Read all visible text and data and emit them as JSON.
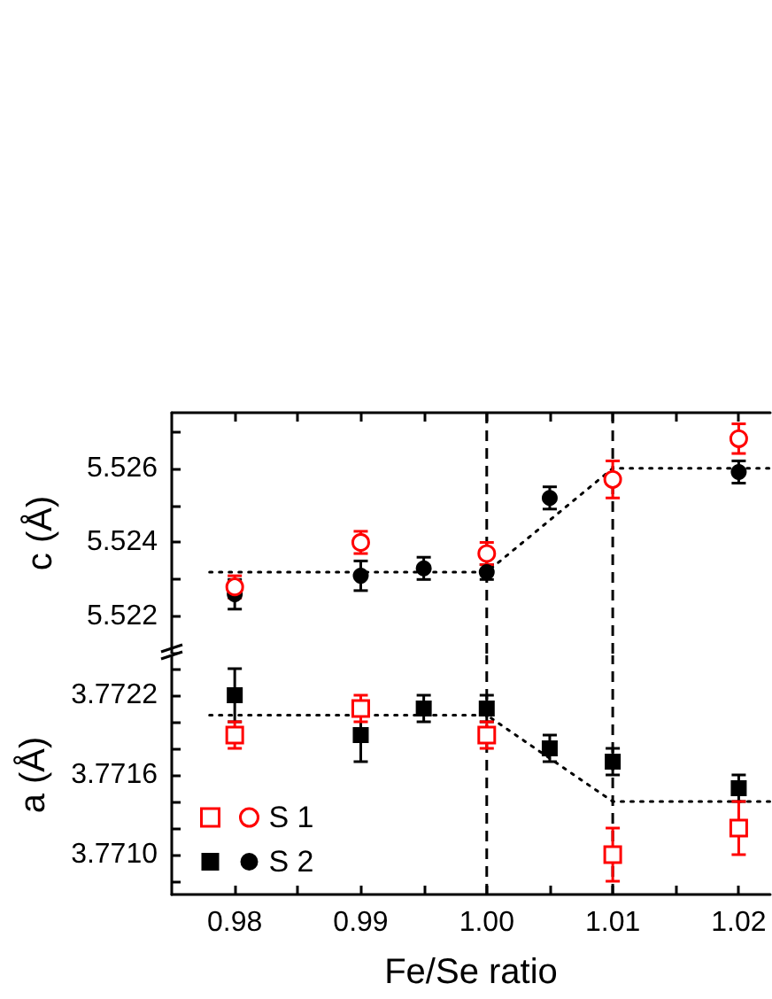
{
  "chart_data": [
    {
      "type": "scatter",
      "ylabel": "c (Å)",
      "marker": "circle",
      "tick_labels": "y",
      "xlim": [
        0.975,
        1.0225
      ],
      "xticks": [
        0.98,
        0.985,
        0.99,
        0.995,
        1.0,
        1.005,
        1.01,
        1.015,
        1.02
      ],
      "ylim": [
        5.521,
        5.5275
      ],
      "yticks": [
        {
          "value": 5.521,
          "label": null
        },
        5.522,
        {
          "value": 5.523,
          "label": null
        },
        5.524,
        {
          "value": 5.525,
          "label": null
        },
        5.526,
        {
          "value": 5.527,
          "label": null
        }
      ],
      "series": [
        {
          "color": "#ff0000",
          "x": [
            0.98,
            0.99,
            1.0,
            1.01,
            1.02
          ],
          "values": [
            5.5228,
            5.524,
            5.5237,
            5.5257,
            5.5268
          ],
          "errors": [
            0.0003,
            0.0003,
            0.0003,
            0.0005,
            0.0004
          ]
        },
        {
          "color": "#000000",
          "x": [
            0.98,
            0.99,
            0.995,
            1.0,
            1.005,
            1.02
          ],
          "values": [
            5.5226,
            5.5231,
            5.5233,
            5.5232,
            5.5252,
            5.5259
          ],
          "errors": [
            0.0004,
            0.0004,
            0.0003,
            0.0002,
            0.0003,
            0.0003
          ]
        },
        {
          "type": "line",
          "color": "#000000",
          "line_style": "dotted",
          "marker": "none",
          "x": [
            0.978,
            1.0,
            1.01,
            1.0225
          ],
          "values": [
            5.5232,
            5.5232,
            5.526,
            5.526
          ]
        }
      ],
      "ref_lines": [
        {
          "axis": "x",
          "value": 1.0,
          "color": "#000000",
          "line_style": "dashed"
        },
        {
          "axis": "x",
          "value": 1.01,
          "color": "#000000",
          "line_style": "dashed"
        }
      ]
    },
    {
      "type": "scatter",
      "xlabel": "Fe/Se ratio",
      "ylabel": "a (Å)",
      "marker": "square",
      "legend": "bottom left",
      "xlim": [
        0.975,
        1.0225
      ],
      "xticks": [
        {
          "value": 0.98,
          "label": "0.98"
        },
        {
          "value": 0.985,
          "label": null
        },
        {
          "value": 0.99,
          "label": "0.99"
        },
        {
          "value": 0.995,
          "label": null
        },
        {
          "value": 1.0,
          "label": "1.00"
        },
        {
          "value": 1.005,
          "label": null
        },
        {
          "value": 1.01,
          "label": "1.01"
        },
        {
          "value": 1.015,
          "label": null
        },
        {
          "value": 1.02,
          "label": "1.02"
        }
      ],
      "ylim": [
        3.7707,
        3.7725
      ],
      "yticks": [
        {
          "value": 3.7708,
          "label": null
        },
        {
          "value": 3.771,
          "label": "3.7710"
        },
        {
          "value": 3.7712,
          "label": null
        },
        {
          "value": 3.7714,
          "label": null
        },
        3.7716,
        {
          "value": 3.7718,
          "label": null
        },
        {
          "value": 3.772,
          "label": null
        },
        3.7722,
        {
          "value": 3.7724,
          "label": null
        }
      ],
      "series": [
        {
          "name": "S 1",
          "color": "#ff0000",
          "x": [
            0.98,
            0.99,
            1.0,
            1.01,
            1.02
          ],
          "values": [
            3.7719,
            3.7721,
            3.7719,
            3.771,
            3.7712
          ],
          "errors": [
            0.0001,
            0.0001,
            0.0001,
            0.0002,
            0.0002
          ]
        },
        {
          "name": "S 2",
          "color": "#000000",
          "x": [
            0.98,
            0.99,
            0.995,
            1.0,
            1.005,
            1.01,
            1.02
          ],
          "values": [
            3.7722,
            3.7719,
            3.7721,
            3.7721,
            3.7718,
            3.7717,
            3.7715
          ],
          "errors": [
            0.0002,
            0.0002,
            0.0001,
            0.0001,
            0.0001,
            0.0001,
            0.0001
          ]
        },
        {
          "type": "line",
          "color": "#000000",
          "line_style": "dotted",
          "marker": "none",
          "x": [
            0.978,
            1.0,
            1.01,
            1.0225
          ],
          "values": [
            3.77205,
            3.77205,
            3.7714,
            3.7714
          ]
        }
      ],
      "ref_lines": [
        {
          "axis": "x",
          "value": 1.0,
          "color": "#000000",
          "line_style": "dashed"
        },
        {
          "axis": "x",
          "value": 1.01,
          "color": "#000000",
          "line_style": "dashed"
        }
      ]
    }
  ]
}
